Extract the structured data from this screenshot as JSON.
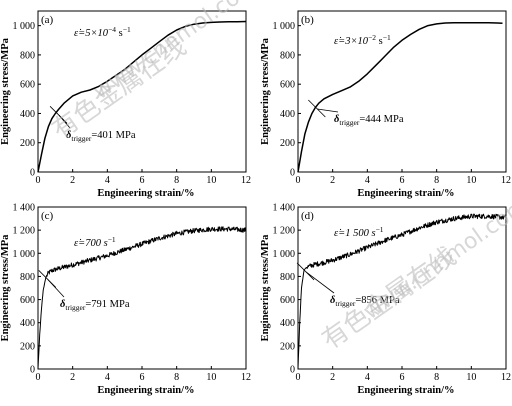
{
  "watermark": {
    "chinese": "有色金属在线",
    "url": "www.cnnmol.com"
  },
  "chart_data": [
    {
      "type": "line",
      "panel_label": "(a)",
      "xlabel": "Engineering strain/%",
      "ylabel": "Engineering stress/MPa",
      "xlim": [
        0,
        12
      ],
      "ylim": [
        0,
        1100
      ],
      "xticks": [
        0,
        2,
        4,
        6,
        8,
        10,
        12
      ],
      "yticks": [
        0,
        200,
        400,
        600,
        800,
        1000
      ],
      "rate_prefix": "ε̇=5×10",
      "rate_exp": "−4",
      "rate_unit": " s",
      "rate_unit_exp": "−1",
      "annotation_symbol": "δ",
      "annotation_sub": "trigger",
      "annotation_value": "=401 MPa",
      "trigger_x": 1.1,
      "trigger_y": 401,
      "noisy": false,
      "x": [
        0,
        0.2,
        0.4,
        0.6,
        0.8,
        1.0,
        1.2,
        1.5,
        2.0,
        2.5,
        3.0,
        3.5,
        4.0,
        4.5,
        5.0,
        5.5,
        6.0,
        6.5,
        7.0,
        7.5,
        8.0,
        8.5,
        9.0,
        9.5,
        10.0,
        10.5,
        11.0,
        11.5,
        12.0
      ],
      "y": [
        0,
        120,
        230,
        310,
        365,
        400,
        430,
        470,
        520,
        545,
        560,
        585,
        620,
        660,
        700,
        750,
        800,
        845,
        890,
        935,
        970,
        995,
        1010,
        1018,
        1022,
        1025,
        1026,
        1027,
        1028
      ]
    },
    {
      "type": "line",
      "panel_label": "(b)",
      "xlabel": "Engineering strain/%",
      "ylabel": "Engineering stress/MPa",
      "xlim": [
        0,
        12
      ],
      "ylim": [
        0,
        1100
      ],
      "xticks": [
        0,
        2,
        4,
        6,
        8,
        10,
        12
      ],
      "yticks": [
        0,
        200,
        400,
        600,
        800,
        1000
      ],
      "rate_prefix": "ε̇=3×10",
      "rate_exp": "−2",
      "rate_unit": " s",
      "rate_unit_exp": "−1",
      "annotation_symbol": "δ",
      "annotation_sub": "trigger",
      "annotation_value": "=444 MPa",
      "trigger_x": 1.0,
      "trigger_y": 444,
      "noisy": false,
      "x": [
        0,
        0.2,
        0.4,
        0.6,
        0.8,
        1.0,
        1.2,
        1.5,
        2.0,
        2.5,
        3.0,
        3.5,
        4.0,
        4.5,
        5.0,
        5.5,
        6.0,
        6.5,
        7.0,
        7.5,
        8.0,
        8.5,
        9.0,
        9.5,
        10.0,
        10.5,
        11.0,
        11.5,
        11.8
      ],
      "y": [
        0,
        140,
        260,
        340,
        400,
        440,
        470,
        500,
        530,
        555,
        580,
        620,
        670,
        730,
        790,
        850,
        900,
        940,
        975,
        1000,
        1012,
        1018,
        1020,
        1020,
        1020,
        1020,
        1020,
        1018,
        1016
      ]
    },
    {
      "type": "line",
      "panel_label": "(c)",
      "xlabel": "Engineering strain/%",
      "ylabel": "Engineering stress/MPa",
      "xlim": [
        0,
        12
      ],
      "ylim": [
        0,
        1400
      ],
      "xticks": [
        0,
        2,
        4,
        6,
        8,
        10,
        12
      ],
      "yticks": [
        0,
        200,
        400,
        600,
        800,
        1000,
        1200,
        1400
      ],
      "rate_prefix": "ε̇=700 s",
      "rate_exp": "−1",
      "rate_unit": "",
      "rate_unit_exp": "",
      "annotation_symbol": "δ",
      "annotation_sub": "trigger",
      "annotation_value": "=791 MPa",
      "trigger_x": 0.45,
      "trigger_y": 791,
      "noisy": true,
      "x": [
        0,
        0.1,
        0.2,
        0.3,
        0.45,
        0.6,
        0.8,
        1.0,
        1.5,
        2.0,
        3.0,
        4.0,
        5.0,
        6.0,
        7.0,
        8.0,
        9.0,
        10.0,
        11.0,
        12.0
      ],
      "y": [
        0,
        300,
        520,
        680,
        790,
        830,
        850,
        860,
        880,
        900,
        940,
        980,
        1030,
        1080,
        1130,
        1170,
        1195,
        1210,
        1210,
        1200
      ]
    },
    {
      "type": "line",
      "panel_label": "(d)",
      "xlabel": "Engineering strain/%",
      "ylabel": "Engineering stress/MPa",
      "xlim": [
        0,
        12
      ],
      "ylim": [
        0,
        1400
      ],
      "xticks": [
        0,
        2,
        4,
        6,
        8,
        10,
        12
      ],
      "yticks": [
        0,
        200,
        400,
        600,
        800,
        1000,
        1200,
        1400
      ],
      "rate_prefix": "ε̇=1 500 s",
      "rate_exp": "−1",
      "rate_unit": "",
      "rate_unit_exp": "",
      "annotation_symbol": "δ",
      "annotation_sub": "trigger",
      "annotation_value": "=856 MPa",
      "trigger_x": 0.35,
      "trigger_y": 856,
      "noisy": true,
      "x": [
        0,
        0.1,
        0.2,
        0.35,
        0.5,
        0.8,
        1.0,
        1.5,
        2.0,
        3.0,
        4.0,
        5.0,
        6.0,
        7.0,
        8.0,
        9.0,
        10.0,
        11.0,
        12.0
      ],
      "y": [
        0,
        400,
        700,
        856,
        880,
        895,
        905,
        920,
        940,
        990,
        1050,
        1110,
        1160,
        1220,
        1270,
        1300,
        1320,
        1320,
        1310
      ]
    }
  ]
}
